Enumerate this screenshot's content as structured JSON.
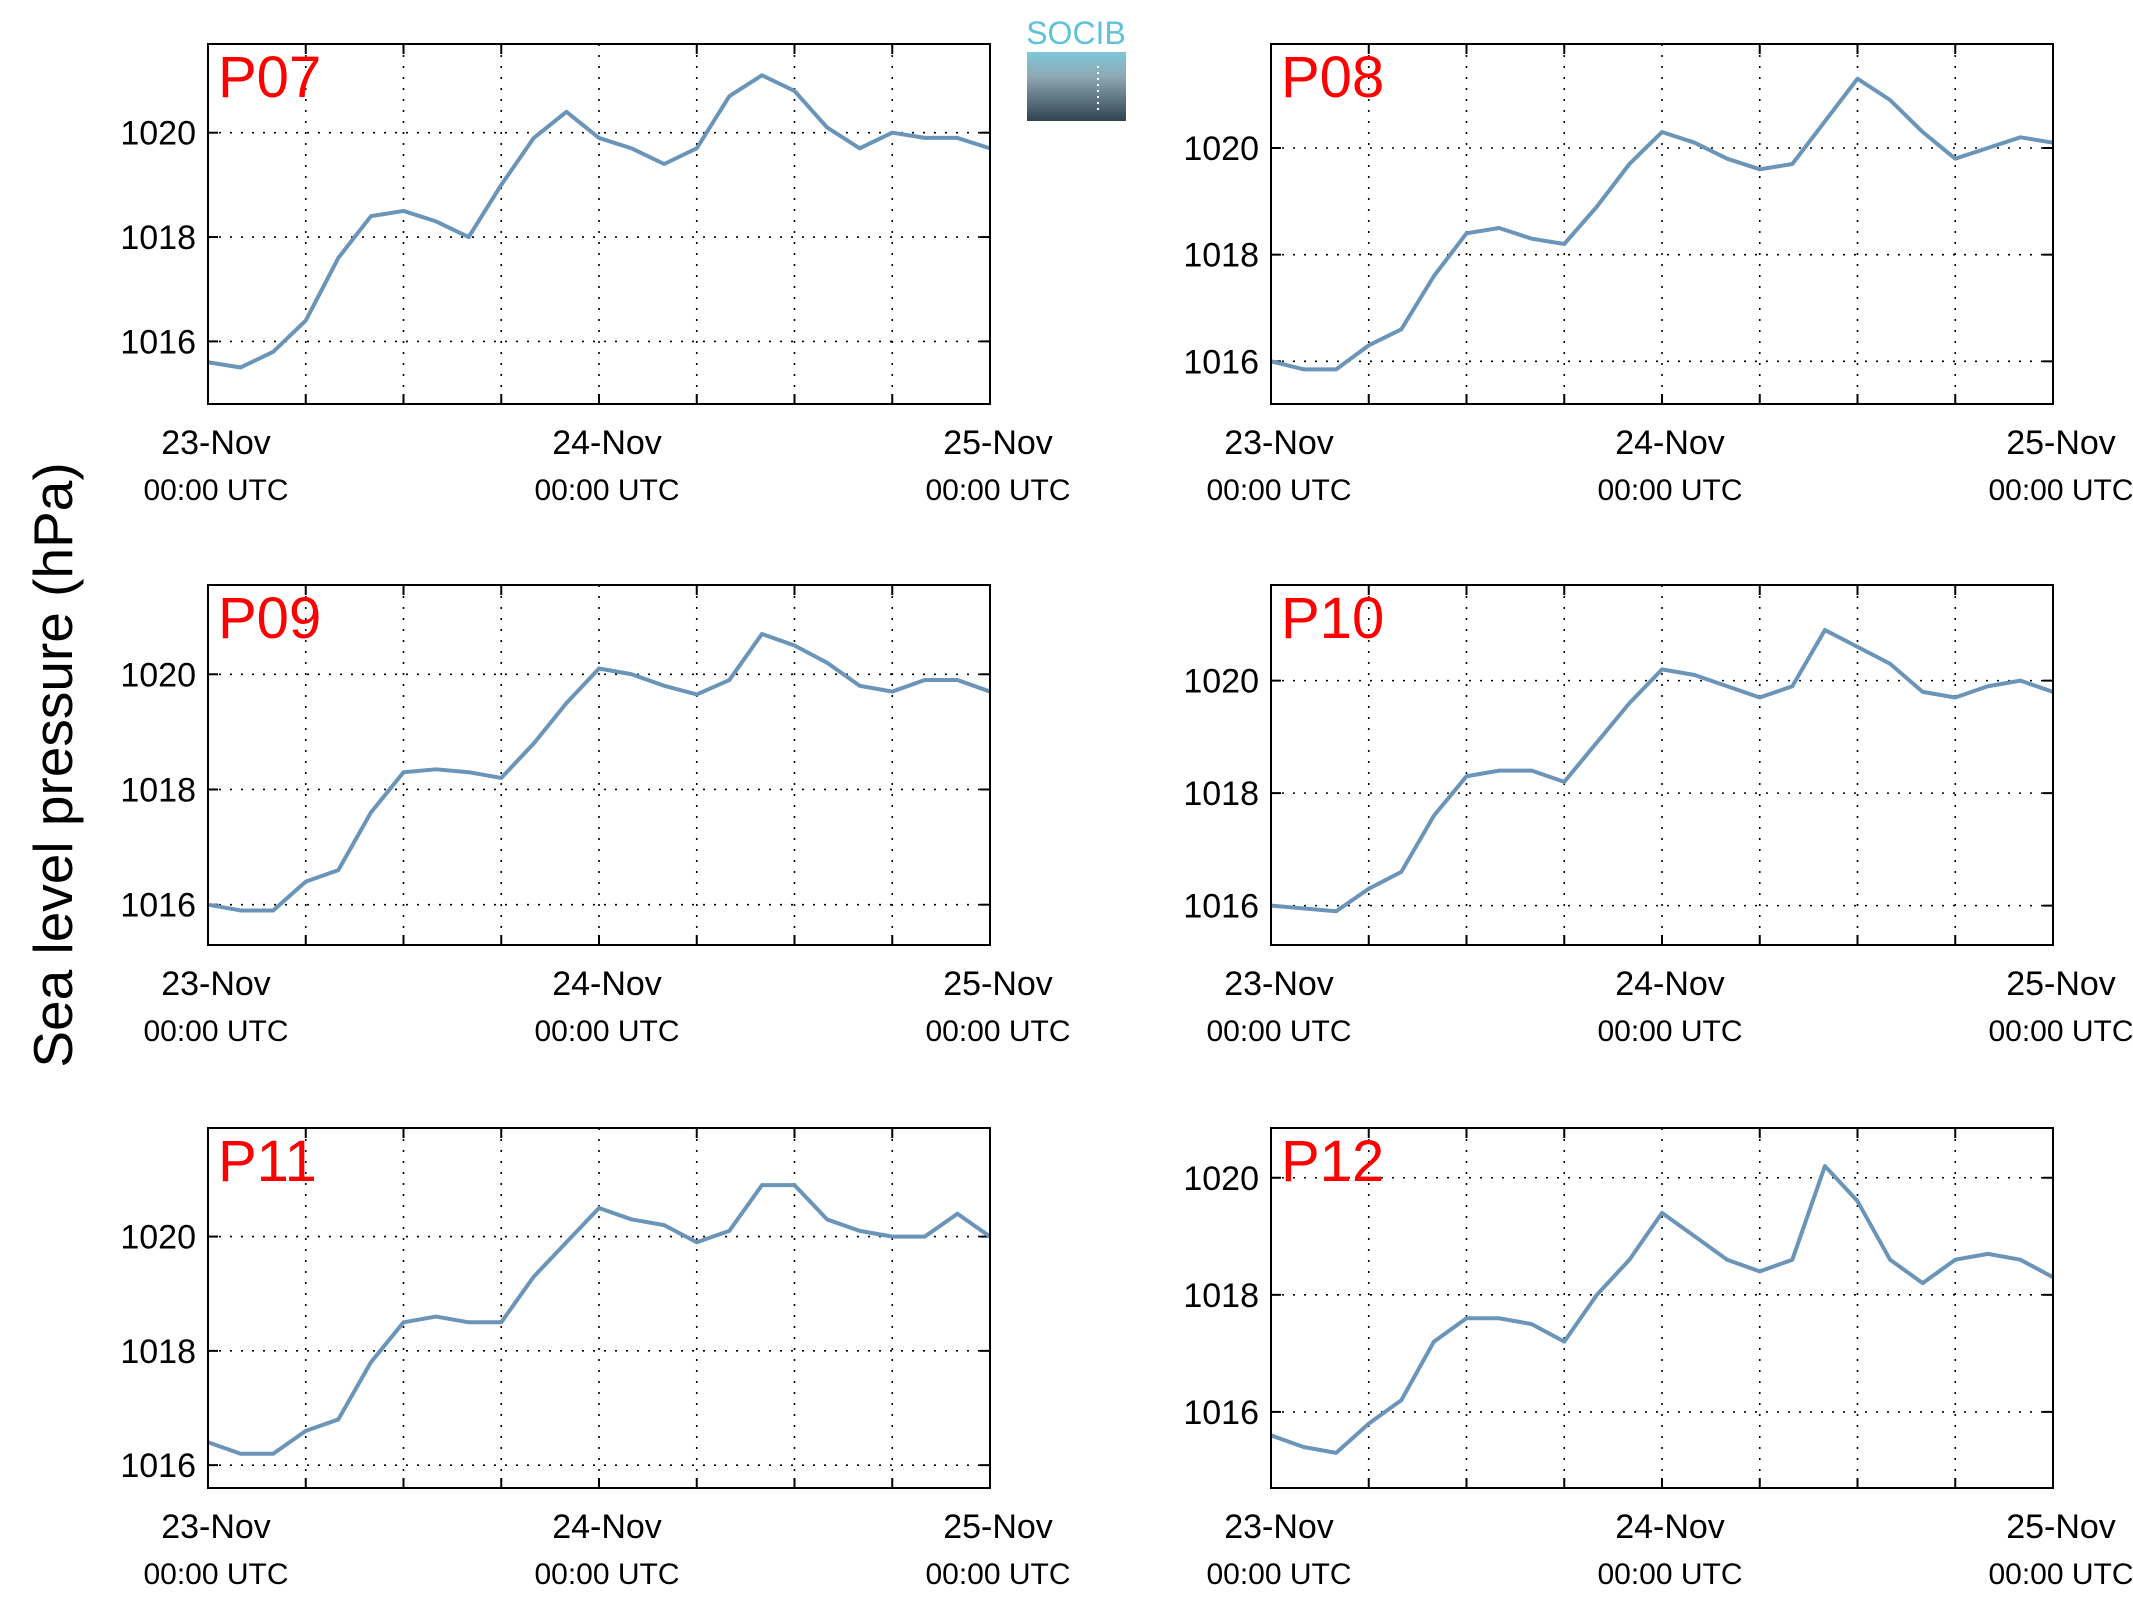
{
  "ylabel": "Sea level pressure (hPa)",
  "logo": "SOCIB",
  "chart_data": [
    {
      "type": "line",
      "title": "P07",
      "title_color": "#ff0000",
      "color": "#6b94b9",
      "grid": true,
      "x": [
        0,
        2,
        4,
        6,
        8,
        10,
        12,
        14,
        16,
        18,
        20,
        22,
        24,
        26,
        28,
        30,
        32,
        34,
        36,
        38,
        40,
        42,
        44,
        46,
        48
      ],
      "values": [
        1015.6,
        1015.5,
        1015.8,
        1016.4,
        1017.6,
        1018.4,
        1018.5,
        1018.3,
        1018.0,
        1019.0,
        1019.9,
        1020.4,
        1019.9,
        1019.7,
        1019.4,
        1019.7,
        1020.7,
        1021.1,
        1020.8,
        1020.1,
        1019.7,
        1020.0,
        1019.9,
        1019.9,
        1019.7
      ],
      "xlim": [
        0,
        48
      ],
      "xticks": [
        {
          "value": 0,
          "label": "23-Nov\n00:00 UTC"
        },
        {
          "value": 24,
          "label": "24-Nov\n00:00 UTC"
        },
        {
          "value": 48,
          "label": "25-Nov\n00:00 UTC"
        }
      ],
      "xminor": [
        6,
        12,
        18,
        30,
        36,
        42
      ],
      "ylim": [
        1014.8,
        1021.7
      ],
      "yticks": [
        1016,
        1018,
        1020
      ]
    },
    {
      "type": "line",
      "title": "P08",
      "title_color": "#ff0000",
      "color": "#6b94b9",
      "grid": true,
      "x": [
        0,
        2,
        4,
        6,
        8,
        10,
        12,
        14,
        16,
        18,
        20,
        22,
        24,
        26,
        28,
        30,
        32,
        34,
        36,
        38,
        40,
        42,
        44,
        46,
        48
      ],
      "values": [
        1016.0,
        1015.85,
        1015.85,
        1016.3,
        1016.6,
        1017.6,
        1018.4,
        1018.5,
        1018.3,
        1018.2,
        1018.9,
        1019.7,
        1020.3,
        1020.1,
        1019.8,
        1019.6,
        1019.7,
        1020.5,
        1021.3,
        1020.9,
        1020.3,
        1019.8,
        1020.0,
        1020.2,
        1020.1
      ],
      "xlim": [
        0,
        48
      ],
      "xticks": [
        {
          "value": 0,
          "label": "23-Nov\n00:00 UTC"
        },
        {
          "value": 24,
          "label": "24-Nov\n00:00 UTC"
        },
        {
          "value": 48,
          "label": "25-Nov\n00:00 UTC"
        }
      ],
      "xminor": [
        6,
        12,
        18,
        30,
        36,
        42
      ],
      "ylim": [
        1015.2,
        1021.95
      ],
      "yticks": [
        1016,
        1018,
        1020
      ]
    },
    {
      "type": "line",
      "title": "P09",
      "title_color": "#ff0000",
      "color": "#6b94b9",
      "grid": true,
      "x": [
        0,
        2,
        4,
        6,
        8,
        10,
        12,
        14,
        16,
        18,
        20,
        22,
        24,
        26,
        28,
        30,
        32,
        34,
        36,
        38,
        40,
        42,
        44,
        46,
        48
      ],
      "values": [
        1016.0,
        1015.9,
        1015.9,
        1016.4,
        1016.6,
        1017.6,
        1018.3,
        1018.35,
        1018.3,
        1018.2,
        1018.8,
        1019.5,
        1020.1,
        1020.0,
        1019.8,
        1019.65,
        1019.9,
        1020.7,
        1020.5,
        1020.2,
        1019.8,
        1019.7,
        1019.9,
        1019.9,
        1019.7
      ],
      "xlim": [
        0,
        48
      ],
      "xticks": [
        {
          "value": 0,
          "label": "23-Nov\n00:00 UTC"
        },
        {
          "value": 24,
          "label": "24-Nov\n00:00 UTC"
        },
        {
          "value": 48,
          "label": "25-Nov\n00:00 UTC"
        }
      ],
      "xminor": [
        6,
        12,
        18,
        30,
        36,
        42
      ],
      "ylim": [
        1015.3,
        1021.55
      ],
      "yticks": [
        1016,
        1018,
        1020
      ]
    },
    {
      "type": "line",
      "title": "P10",
      "title_color": "#ff0000",
      "color": "#6b94b9",
      "grid": true,
      "x": [
        0,
        2,
        4,
        6,
        8,
        10,
        12,
        14,
        16,
        18,
        20,
        22,
        24,
        26,
        28,
        30,
        32,
        34,
        36,
        38,
        40,
        42,
        44,
        46,
        48
      ],
      "values": [
        1016.0,
        1015.95,
        1015.9,
        1016.3,
        1016.6,
        1017.6,
        1018.3,
        1018.4,
        1018.4,
        1018.2,
        1018.9,
        1019.6,
        1020.2,
        1020.1,
        1019.9,
        1019.7,
        1019.9,
        1020.9,
        1020.6,
        1020.3,
        1019.8,
        1019.7,
        1019.9,
        1020.0,
        1019.8
      ],
      "xlim": [
        0,
        48
      ],
      "xticks": [
        {
          "value": 0,
          "label": "23-Nov\n00:00 UTC"
        },
        {
          "value": 24,
          "label": "24-Nov\n00:00 UTC"
        },
        {
          "value": 48,
          "label": "25-Nov\n00:00 UTC"
        }
      ],
      "xminor": [
        6,
        12,
        18,
        30,
        36,
        42
      ],
      "ylim": [
        1015.3,
        1021.7
      ],
      "yticks": [
        1016,
        1018,
        1020
      ]
    },
    {
      "type": "line",
      "title": "P11",
      "title_color": "#ff0000",
      "color": "#6b94b9",
      "grid": true,
      "x": [
        0,
        2,
        4,
        6,
        8,
        10,
        12,
        14,
        16,
        18,
        20,
        22,
        24,
        26,
        28,
        30,
        32,
        34,
        36,
        38,
        40,
        42,
        44,
        46,
        48
      ],
      "values": [
        1016.4,
        1016.2,
        1016.2,
        1016.6,
        1016.8,
        1017.8,
        1018.5,
        1018.6,
        1018.5,
        1018.5,
        1019.3,
        1019.9,
        1020.5,
        1020.3,
        1020.2,
        1019.9,
        1020.1,
        1020.9,
        1020.9,
        1020.3,
        1020.1,
        1020.0,
        1020.0,
        1020.4,
        1020.0
      ],
      "xlim": [
        0,
        48
      ],
      "xticks": [
        {
          "value": 0,
          "label": "23-Nov\n00:00 UTC"
        },
        {
          "value": 24,
          "label": "24-Nov\n00:00 UTC"
        },
        {
          "value": 48,
          "label": "25-Nov\n00:00 UTC"
        }
      ],
      "xminor": [
        6,
        12,
        18,
        30,
        36,
        42
      ],
      "ylim": [
        1015.6,
        1021.9
      ],
      "yticks": [
        1016,
        1018,
        1020
      ]
    },
    {
      "type": "line",
      "title": "P12",
      "title_color": "#ff0000",
      "color": "#6b94b9",
      "grid": true,
      "x": [
        0,
        2,
        4,
        6,
        8,
        10,
        12,
        14,
        16,
        18,
        20,
        22,
        24,
        26,
        28,
        30,
        32,
        34,
        36,
        38,
        40,
        42,
        44,
        46,
        48
      ],
      "values": [
        1015.6,
        1015.4,
        1015.3,
        1015.8,
        1016.2,
        1017.2,
        1017.6,
        1017.6,
        1017.5,
        1017.2,
        1018.0,
        1018.6,
        1019.4,
        1019.0,
        1018.6,
        1018.4,
        1018.6,
        1020.2,
        1019.6,
        1018.6,
        1018.2,
        1018.6,
        1018.7,
        1018.6,
        1018.3
      ],
      "xlim": [
        0,
        48
      ],
      "xticks": [
        {
          "value": 0,
          "label": "23-Nov\n00:00 UTC"
        },
        {
          "value": 24,
          "label": "24-Nov\n00:00 UTC"
        },
        {
          "value": 48,
          "label": "25-Nov\n00:00 UTC"
        }
      ],
      "xminor": [
        6,
        12,
        18,
        30,
        36,
        42
      ],
      "ylim": [
        1014.7,
        1020.85
      ],
      "yticks": [
        1016,
        1018,
        1020
      ]
    }
  ]
}
